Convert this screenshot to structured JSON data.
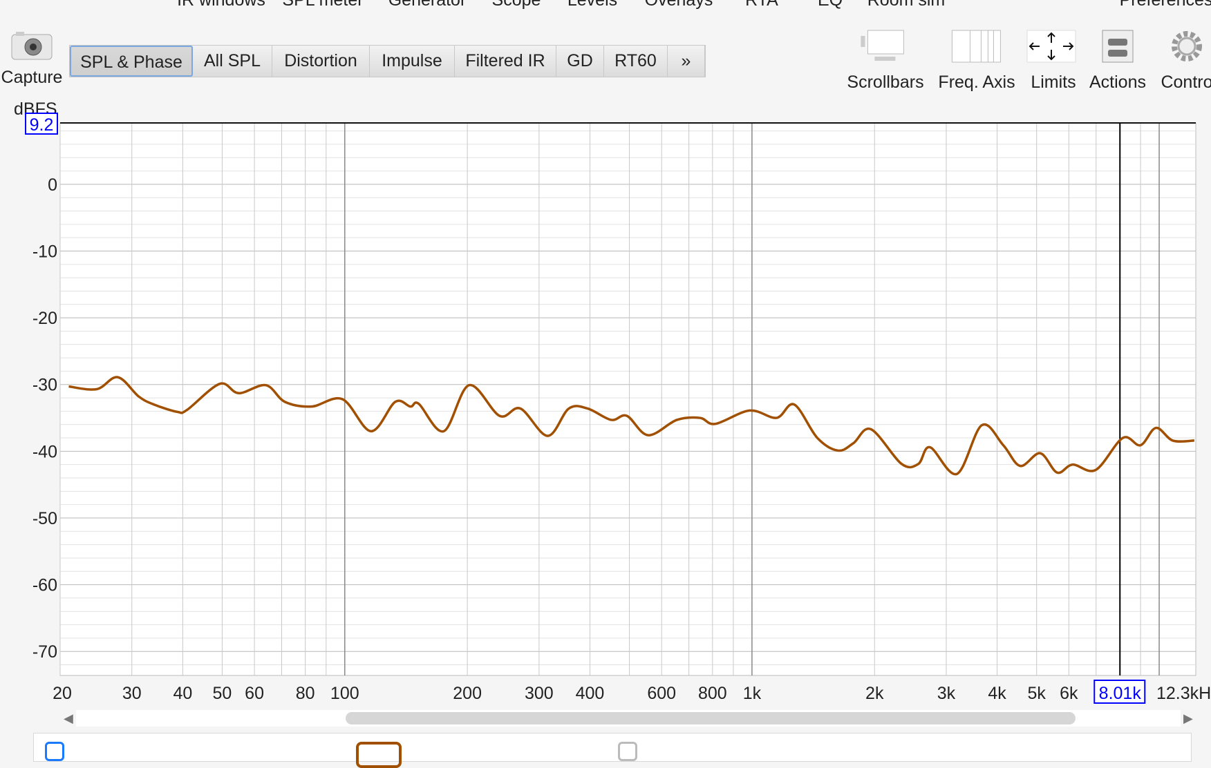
{
  "menu": [
    "IR windows",
    "SPL meter",
    "Generator",
    "Scope",
    "Levels",
    "Overlays",
    "RTA",
    "EQ",
    "Room sim",
    "Preferences"
  ],
  "capture": {
    "label": "Capture",
    "icon": "camera-icon"
  },
  "tabs": [
    {
      "label": "SPL & Phase",
      "active": true
    },
    {
      "label": "All SPL"
    },
    {
      "label": "Distortion"
    },
    {
      "label": "Impulse"
    },
    {
      "label": "Filtered IR"
    },
    {
      "label": "GD"
    },
    {
      "label": "RT60"
    },
    {
      "label": "»"
    }
  ],
  "tools": [
    {
      "label": "Scrollbars",
      "icon": "scrollbars-icon"
    },
    {
      "label": "Freq. Axis",
      "icon": "freq-axis-icon"
    },
    {
      "label": "Limits",
      "icon": "limits-icon"
    },
    {
      "label": "Actions",
      "icon": "actions-icon"
    },
    {
      "label": "Contro",
      "icon": "gear-icon"
    }
  ],
  "colors": {
    "trace": "#a05000",
    "cursor_box": "#0000ff",
    "grid": "#cccccc",
    "grid_major": "#888888"
  },
  "chart_data": {
    "type": "line",
    "ylabel": "dBFS",
    "xscale": "log",
    "xlim": [
      20,
      12300
    ],
    "ylim": [
      -73.6,
      9.2
    ],
    "ytop_readout": "9.2",
    "yticks": [
      0,
      -10,
      -20,
      -30,
      -40,
      -50,
      -60,
      -70
    ],
    "ytick_labels": [
      "0",
      "-10",
      "-20",
      "-30",
      "-40",
      "-50",
      "-60",
      "-70"
    ],
    "xticks": [
      20,
      30,
      40,
      50,
      60,
      80,
      100,
      200,
      300,
      400,
      600,
      800,
      1000,
      2000,
      3000,
      4000,
      5000,
      6000
    ],
    "xtick_labels": [
      "20",
      "30",
      "40",
      "50",
      "60",
      "80",
      "100",
      "200",
      "300",
      "400",
      "600",
      "800",
      "1k",
      "2k",
      "3k",
      "4k",
      "5k",
      "6k"
    ],
    "cursor_readout": "8.01k",
    "cursor_freq": 8010,
    "xend_label": "12.3kHz",
    "grid": true,
    "series": [
      {
        "x": [
          21,
          24.6,
          27.7,
          31.2,
          34,
          38.8,
          41,
          49.3,
          54.9,
          64,
          71.3,
          82.9,
          98.7,
          116,
          133,
          145,
          152,
          175,
          202,
          240,
          270,
          315,
          355,
          395,
          451,
          493,
          556,
          654,
          745,
          813,
          987,
          1149,
          1270,
          1447,
          1626,
          1774,
          1960,
          2330,
          2562,
          2737,
          3186,
          3667,
          4142,
          4557,
          5103,
          5616,
          6130,
          6985,
          8141,
          8995,
          9820,
          10800,
          12200
        ],
        "y": [
          -30.3,
          -30.7,
          -28.9,
          -31.8,
          -33,
          -34.1,
          -33.8,
          -29.9,
          -31.3,
          -30.1,
          -32.6,
          -33.3,
          -32.2,
          -37,
          -32.6,
          -33.3,
          -32.9,
          -37,
          -30.1,
          -34.7,
          -33.6,
          -37.7,
          -33.6,
          -33.6,
          -35.3,
          -34.7,
          -37.6,
          -35.3,
          -35,
          -35.9,
          -33.9,
          -35,
          -33,
          -38,
          -39.9,
          -38.8,
          -36.7,
          -41.9,
          -41.9,
          -39.4,
          -43.4,
          -36.1,
          -39.1,
          -42.2,
          -40.3,
          -43.2,
          -42,
          -42.8,
          -38,
          -39.1,
          -36.5,
          -38.4,
          -38.4
        ]
      }
    ]
  }
}
